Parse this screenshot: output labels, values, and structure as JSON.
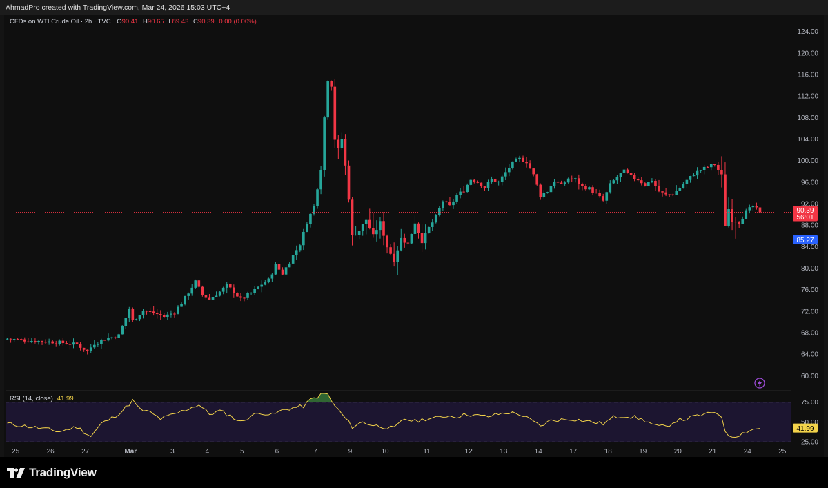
{
  "header": {
    "created_by": "AhmadPro created with TradingView.com, Mar 24, 2026 15:03 UTC+4"
  },
  "legend": {
    "symbol": "CFDs on WTI Crude Oil · 2h · TVC",
    "o_label": "O",
    "o_value": "90.41",
    "h_label": "H",
    "h_value": "90.65",
    "l_label": "L",
    "l_value": "89.43",
    "c_label": "C",
    "c_value": "90.39",
    "change": "0.00 (0.00%)"
  },
  "rsi_legend": {
    "label": "RSI (14, close)",
    "value": "41.99"
  },
  "footer": {
    "brand": "TradingView"
  },
  "colors": {
    "up": "#26a69a",
    "down": "#f23645",
    "rsi_line": "#f3d34a",
    "rsi_band": "#1c1530",
    "price_line": "#f23645",
    "ref_line": "#2962ff"
  },
  "icons": {
    "brand_logo": "tradingview-logo-icon",
    "alert": "lightning-icon"
  },
  "chart_data": {
    "type": "candlestick",
    "title": "CFDs on WTI Crude Oil · 2h · TVC",
    "x_ticks": [
      "25",
      "26",
      "27",
      "Mar",
      "3",
      "4",
      "5",
      "6",
      "7",
      "9",
      "10",
      "11",
      "12",
      "13",
      "14",
      "17",
      "18",
      "19",
      "20",
      "21",
      "24",
      "25"
    ],
    "y_ticks": [
      "60.00",
      "64.00",
      "68.00",
      "72.00",
      "76.00",
      "80.00",
      "84.00",
      "88.00",
      "92.00",
      "96.00",
      "100.00",
      "104.00",
      "108.00",
      "112.00",
      "116.00",
      "120.00",
      "124.00"
    ],
    "ylim": [
      58,
      126
    ],
    "grid": false,
    "price_labels": {
      "last": "90.39",
      "countdown": "56:01",
      "reference": "85.27"
    },
    "close_path": [
      [
        0,
        66.9
      ],
      [
        5,
        66.6
      ],
      [
        10,
        66.4
      ],
      [
        15,
        66.2
      ],
      [
        20,
        65.8
      ],
      [
        23,
        64.6
      ],
      [
        25,
        66.0
      ],
      [
        28,
        66.8
      ],
      [
        32,
        67.5
      ],
      [
        35,
        72.5
      ],
      [
        36,
        70.2
      ],
      [
        39,
        72.1
      ],
      [
        42,
        71.7
      ],
      [
        45,
        71.0
      ],
      [
        48,
        71.8
      ],
      [
        51,
        74.5
      ],
      [
        54,
        77.5
      ],
      [
        56,
        75.0
      ],
      [
        58,
        74.2
      ],
      [
        61,
        75.6
      ],
      [
        63,
        76.8
      ],
      [
        65,
        75.6
      ],
      [
        67,
        74.2
      ],
      [
        70,
        75.4
      ],
      [
        73,
        77.0
      ],
      [
        75,
        77.8
      ],
      [
        77,
        80.5
      ],
      [
        79,
        79.0
      ],
      [
        81,
        81.2
      ],
      [
        84,
        84.5
      ],
      [
        86,
        88.5
      ],
      [
        88,
        91.5
      ],
      [
        90,
        98.5
      ],
      [
        91,
        108.0
      ],
      [
        92,
        115.0
      ],
      [
        93,
        114.0
      ],
      [
        94,
        104.0
      ],
      [
        95,
        102.0
      ],
      [
        96,
        104.0
      ],
      [
        97,
        99.0
      ],
      [
        98,
        93.0
      ],
      [
        99,
        86.0
      ],
      [
        101,
        87.0
      ],
      [
        103,
        89.0
      ],
      [
        105,
        86.0
      ],
      [
        107,
        88.5
      ],
      [
        109,
        84.0
      ],
      [
        111,
        81.5
      ],
      [
        113,
        85.5
      ],
      [
        115,
        84.5
      ],
      [
        117,
        88.5
      ],
      [
        119,
        85.0
      ],
      [
        121,
        87.5
      ],
      [
        123,
        89.5
      ],
      [
        125,
        92.5
      ],
      [
        127,
        91.5
      ],
      [
        129,
        93.5
      ],
      [
        131,
        94.5
      ],
      [
        133,
        96.5
      ],
      [
        135,
        96.0
      ],
      [
        137,
        95.0
      ],
      [
        139,
        96.5
      ],
      [
        141,
        96.0
      ],
      [
        143,
        97.8
      ],
      [
        145,
        99.5
      ],
      [
        147,
        100.3
      ],
      [
        149,
        99.8
      ],
      [
        151,
        97.3
      ],
      [
        153,
        93.5
      ],
      [
        155,
        94.3
      ],
      [
        157,
        96.3
      ],
      [
        159,
        95.3
      ],
      [
        161,
        96.7
      ],
      [
        163,
        96.5
      ],
      [
        165,
        95.2
      ],
      [
        167,
        94.8
      ],
      [
        169,
        93.8
      ],
      [
        171,
        92.5
      ],
      [
        173,
        95.5
      ],
      [
        175,
        97.0
      ],
      [
        177,
        98.0
      ],
      [
        179,
        97.0
      ],
      [
        181,
        96.5
      ],
      [
        183,
        95.5
      ],
      [
        185,
        96.4
      ],
      [
        187,
        94.3
      ],
      [
        189,
        93.6
      ],
      [
        191,
        93.8
      ],
      [
        193,
        95.0
      ],
      [
        195,
        96.3
      ],
      [
        197,
        97.5
      ],
      [
        199,
        98.3
      ],
      [
        201,
        98.8
      ],
      [
        203,
        99.3
      ],
      [
        205,
        97.2
      ],
      [
        206,
        88.0
      ],
      [
        207,
        91.0
      ],
      [
        208,
        89.0
      ],
      [
        210,
        88.5
      ],
      [
        212,
        90.5
      ],
      [
        214,
        91.5
      ],
      [
        216,
        90.4
      ]
    ],
    "rsi": {
      "name": "RSI (14, close)",
      "last": 41.99,
      "levels": [
        25,
        50,
        75
      ],
      "level_ticks": [
        "25.00",
        "50.00",
        "75.00"
      ],
      "ylim": [
        20,
        86
      ],
      "path": [
        [
          0,
          48
        ],
        [
          5,
          45
        ],
        [
          10,
          42
        ],
        [
          15,
          38
        ],
        [
          20,
          44
        ],
        [
          24,
          32
        ],
        [
          27,
          48
        ],
        [
          30,
          55
        ],
        [
          33,
          64
        ],
        [
          36,
          77
        ],
        [
          38,
          66
        ],
        [
          41,
          62
        ],
        [
          44,
          54
        ],
        [
          48,
          60
        ],
        [
          52,
          67
        ],
        [
          55,
          72
        ],
        [
          58,
          60
        ],
        [
          61,
          64
        ],
        [
          64,
          58
        ],
        [
          67,
          50
        ],
        [
          70,
          58
        ],
        [
          73,
          62
        ],
        [
          76,
          59
        ],
        [
          79,
          65
        ],
        [
          82,
          68
        ],
        [
          85,
          70
        ],
        [
          87,
          78
        ],
        [
          89,
          82
        ],
        [
          90.5,
          86
        ],
        [
          92,
          85
        ],
        [
          93,
          76
        ],
        [
          96,
          60
        ],
        [
          99,
          44
        ],
        [
          102,
          50
        ],
        [
          105,
          46
        ],
        [
          108,
          44
        ],
        [
          111,
          42
        ],
        [
          114,
          54
        ],
        [
          117,
          51
        ],
        [
          120,
          54
        ],
        [
          123,
          55
        ],
        [
          126,
          58
        ],
        [
          129,
          57
        ],
        [
          132,
          60
        ],
        [
          135,
          58
        ],
        [
          138,
          57
        ],
        [
          141,
          60
        ],
        [
          144,
          62
        ],
        [
          147,
          60
        ],
        [
          150,
          53
        ],
        [
          153,
          45
        ],
        [
          156,
          52
        ],
        [
          159,
          53
        ],
        [
          162,
          54
        ],
        [
          165,
          52
        ],
        [
          168,
          50
        ],
        [
          171,
          48
        ],
        [
          174,
          56
        ],
        [
          177,
          58
        ],
        [
          180,
          56
        ],
        [
          183,
          52
        ],
        [
          186,
          45
        ],
        [
          189,
          44
        ],
        [
          192,
          52
        ],
        [
          195,
          54
        ],
        [
          198,
          58
        ],
        [
          201,
          60
        ],
        [
          203,
          63
        ],
        [
          205,
          58
        ],
        [
          206,
          36
        ],
        [
          208,
          32
        ],
        [
          210,
          34
        ],
        [
          212,
          38
        ],
        [
          214,
          41
        ],
        [
          216,
          42
        ]
      ]
    }
  }
}
